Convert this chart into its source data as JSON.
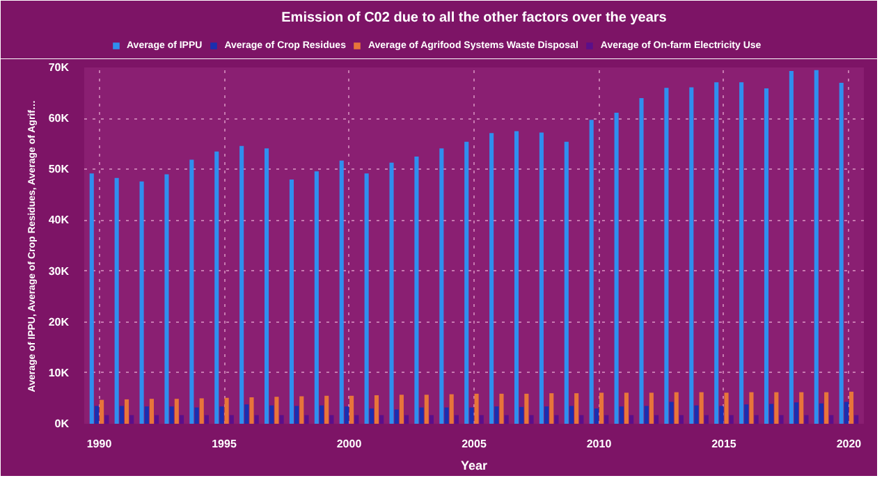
{
  "chart_data": {
    "type": "bar",
    "title": "Emission of C02 due to all the other factors over the years",
    "xlabel": "Year",
    "ylabel": "Average of IPPU, Average of Crop Residues, Average of Agrif…",
    "x": [
      1990,
      1991,
      1992,
      1993,
      1994,
      1995,
      1996,
      1997,
      1998,
      1999,
      2000,
      2001,
      2002,
      2003,
      2004,
      2005,
      2006,
      2007,
      2008,
      2009,
      2010,
      2011,
      2012,
      2013,
      2014,
      2015,
      2016,
      2017,
      2018,
      2019,
      2020
    ],
    "series": [
      {
        "name": "Average of IPPU",
        "color": "#2f8fef",
        "values": [
          49200,
          48300,
          47600,
          49000,
          51900,
          53500,
          54600,
          54100,
          48000,
          49600,
          51700,
          49200,
          51300,
          52500,
          54100,
          55400,
          57100,
          57500,
          57200,
          55400,
          59700,
          61100,
          64000,
          66000,
          66100,
          67100,
          67100,
          65900,
          69300,
          69500,
          67000
        ]
      },
      {
        "name": "Average of Crop Residues",
        "color": "#1a2fb0",
        "values": [
          3500,
          3500,
          3400,
          3400,
          3200,
          3400,
          3800,
          3600,
          3500,
          3600,
          3400,
          3000,
          2800,
          3200,
          3200,
          3200,
          3400,
          3300,
          3400,
          3500,
          3000,
          3400,
          3500,
          4300,
          3600,
          3500,
          3800,
          3900,
          4200,
          4000,
          4300
        ]
      },
      {
        "name": "Average of Agrifood Systems Waste Disposal",
        "color": "#e8753a",
        "values": [
          4700,
          4800,
          4900,
          4900,
          5000,
          5100,
          5200,
          5300,
          5400,
          5500,
          5500,
          5600,
          5700,
          5700,
          5800,
          5900,
          5900,
          5900,
          6000,
          6000,
          6100,
          6100,
          6100,
          6200,
          6200,
          6100,
          6200,
          6200,
          6200,
          6200,
          6300
        ]
      },
      {
        "name": "Average of On-farm Electricity Use",
        "color": "#5a0f8a",
        "values": [
          1700,
          1700,
          1700,
          1700,
          1700,
          1700,
          1700,
          1700,
          1700,
          1700,
          1700,
          1700,
          1700,
          1700,
          1700,
          1700,
          1700,
          1700,
          1700,
          1700,
          1700,
          1700,
          1700,
          1700,
          1700,
          1700,
          1700,
          1700,
          1700,
          1700,
          1700
        ]
      }
    ],
    "xlim": [
      1989.4,
      2020.6
    ],
    "xticks": [
      1990,
      1995,
      2000,
      2005,
      2010,
      2015,
      2020
    ],
    "ylim": [
      0,
      70000
    ],
    "yticks": [
      {
        "value": 0,
        "label": "0K"
      },
      {
        "value": 10000,
        "label": "10K"
      },
      {
        "value": 20000,
        "label": "20K"
      },
      {
        "value": 30000,
        "label": "30K"
      },
      {
        "value": 40000,
        "label": "40K"
      },
      {
        "value": 50000,
        "label": "50K"
      },
      {
        "value": 60000,
        "label": "60K"
      },
      {
        "value": 70000,
        "label": "70K"
      }
    ],
    "grid": true,
    "legend": "top left"
  }
}
